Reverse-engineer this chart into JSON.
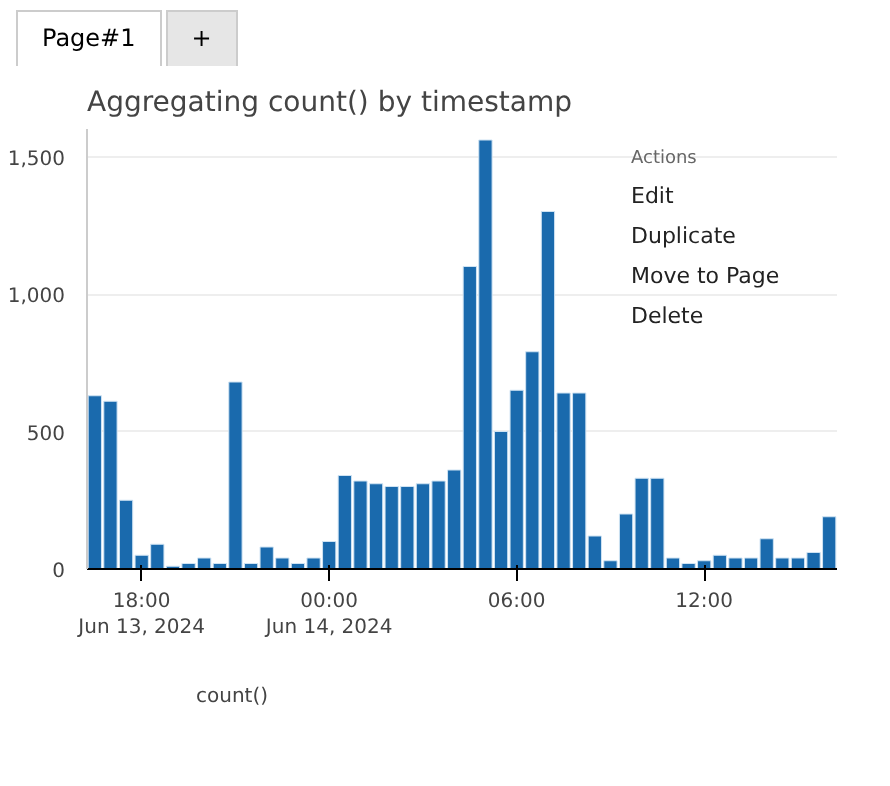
{
  "chart_data": {
    "type": "bar",
    "title": "Aggregating count() by timestamp",
    "x": [
      "2024-06-13T16:30",
      "2024-06-13T17:00",
      "2024-06-13T17:30",
      "2024-06-13T18:00",
      "2024-06-13T18:30",
      "2024-06-13T19:00",
      "2024-06-13T19:30",
      "2024-06-13T20:00",
      "2024-06-13T20:30",
      "2024-06-13T21:00",
      "2024-06-13T21:30",
      "2024-06-13T22:00",
      "2024-06-13T22:30",
      "2024-06-13T23:00",
      "2024-06-13T23:30",
      "2024-06-14T00:00",
      "2024-06-14T00:30",
      "2024-06-14T01:00",
      "2024-06-14T01:30",
      "2024-06-14T02:00",
      "2024-06-14T02:30",
      "2024-06-14T03:00",
      "2024-06-14T03:30",
      "2024-06-14T04:00",
      "2024-06-14T04:30",
      "2024-06-14T05:00",
      "2024-06-14T05:30",
      "2024-06-14T06:00",
      "2024-06-14T06:30",
      "2024-06-14T07:00",
      "2024-06-14T07:30",
      "2024-06-14T08:00",
      "2024-06-14T08:30",
      "2024-06-14T09:00",
      "2024-06-14T09:30",
      "2024-06-14T10:00",
      "2024-06-14T10:30",
      "2024-06-14T11:00",
      "2024-06-14T11:30",
      "2024-06-14T12:00",
      "2024-06-14T12:30",
      "2024-06-14T13:00",
      "2024-06-14T13:30",
      "2024-06-14T14:00",
      "2024-06-14T14:30",
      "2024-06-14T15:00",
      "2024-06-14T15:30",
      "2024-06-14T16:00"
    ],
    "series": [
      {
        "name": "count()",
        "color": "#1a6aad",
        "values": [
          630,
          610,
          250,
          50,
          90,
          10,
          20,
          40,
          20,
          680,
          20,
          80,
          40,
          20,
          40,
          100,
          340,
          320,
          310,
          300,
          300,
          310,
          320,
          360,
          1100,
          1560,
          500,
          650,
          790,
          1300,
          640,
          640,
          120,
          30,
          200,
          330,
          330,
          40,
          20,
          30,
          50,
          40,
          40,
          110,
          40,
          40,
          60,
          190
        ]
      }
    ],
    "xlim": [
      "2024-06-13T16:15",
      "2024-06-14T16:15"
    ],
    "xticks": [
      {
        "value": "2024-06-13T18:00",
        "label": "18:00\nJun 13, 2024"
      },
      {
        "value": "2024-06-14T00:00",
        "label": "00:00\nJun 14, 2024"
      },
      {
        "value": "2024-06-14T06:00",
        "label": "06:00"
      },
      {
        "value": "2024-06-14T12:00",
        "label": "12:00"
      }
    ],
    "ylim": [
      0,
      1600
    ],
    "yticks": [
      0,
      {
        "value": 500,
        "label": "500"
      },
      {
        "value": 1000,
        "label": "1,000"
      },
      {
        "value": 1500,
        "label": "1,500"
      }
    ],
    "grid": "y",
    "legend": "bottom",
    "annotations": [
      "Page#1",
      "+",
      "Actions",
      "Edit",
      "Duplicate",
      "Move to Page",
      "Delete"
    ]
  }
}
